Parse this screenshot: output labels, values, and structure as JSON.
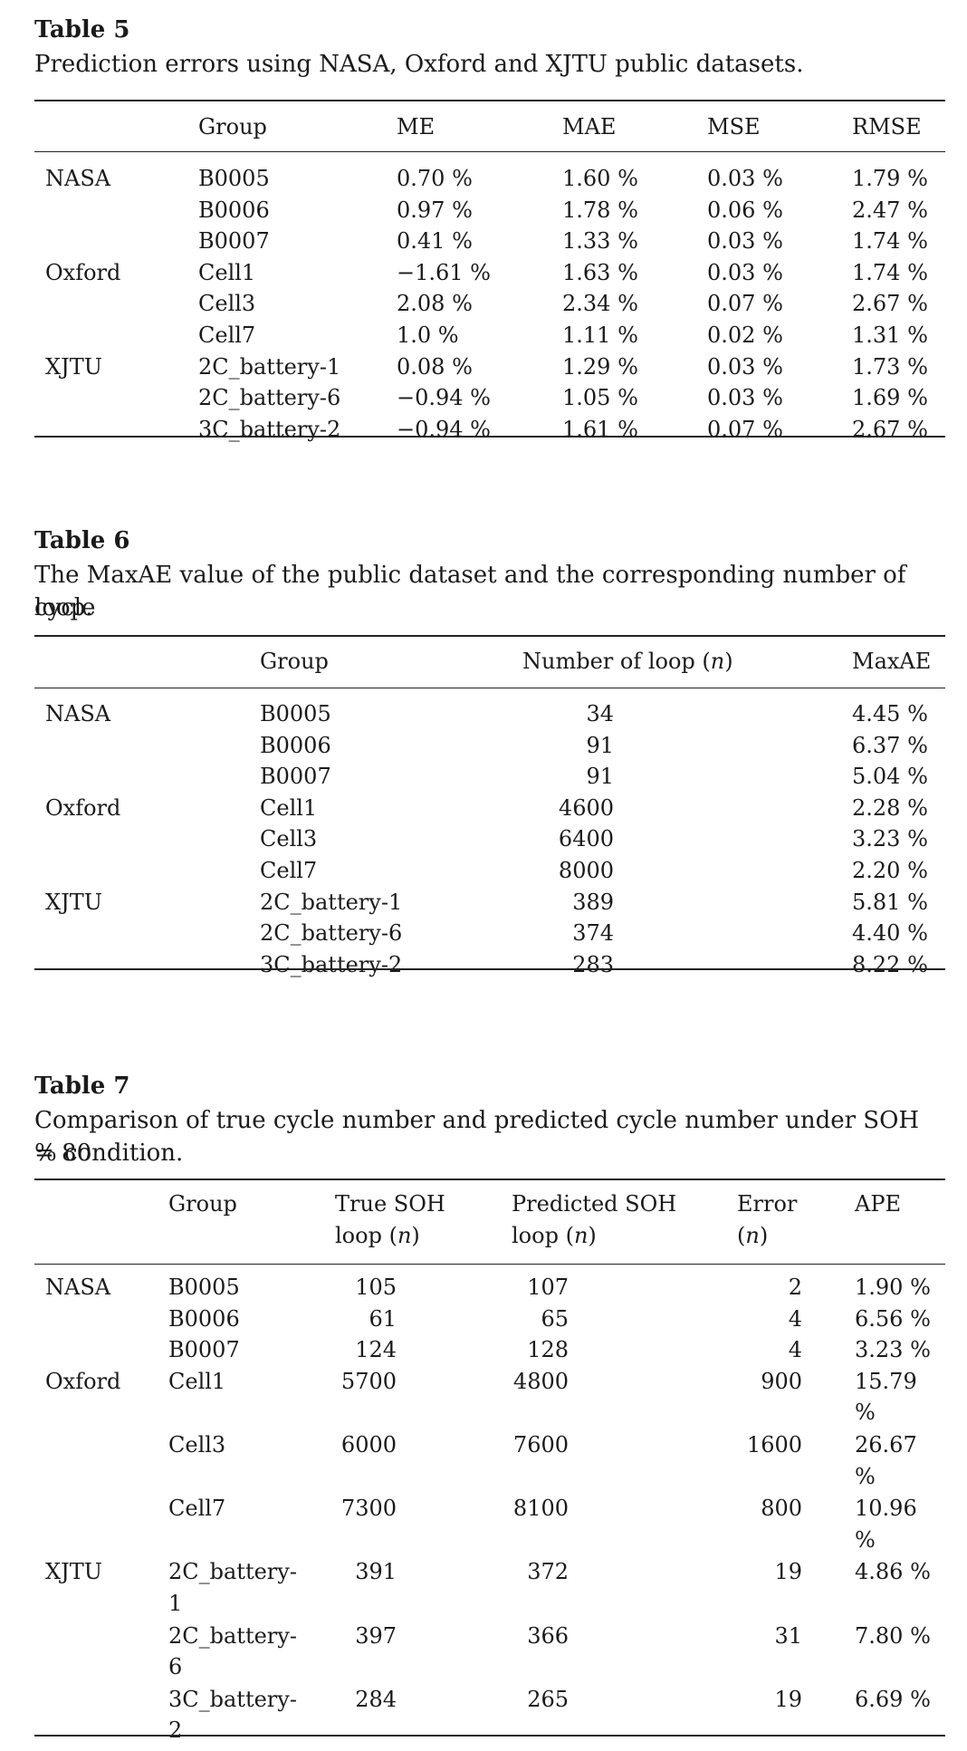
{
  "table5": {
    "label": "Table 5",
    "caption": "Prediction errors using NASA, Oxford and XJTU public datasets.",
    "headers": [
      "Group",
      "ME",
      "MAE",
      "MSE",
      "RMSE"
    ],
    "rows": [
      [
        "NASA",
        "B0005",
        "0.70 %",
        "1.60 %",
        "0.03 %",
        "1.79 %"
      ],
      [
        "",
        "B0006",
        "0.97 %",
        "1.78 %",
        "0.06 %",
        "2.47 %"
      ],
      [
        "",
        "B0007",
        "0.41 %",
        "1.33 %",
        "0.03 %",
        "1.74 %"
      ],
      [
        "Oxford",
        "Cell1",
        "−1.61 %",
        "1.63 %",
        "0.03 %",
        "1.74 %"
      ],
      [
        "",
        "Cell3",
        "2.08 %",
        "2.34 %",
        "0.07 %",
        "2.67 %"
      ],
      [
        "",
        "Cell7",
        "1.0 %",
        "1.11 %",
        "0.02 %",
        "1.31 %"
      ],
      [
        "XJTU",
        "2C_battery-1",
        "0.08 %",
        "1.29 %",
        "0.03 %",
        "1.73 %"
      ],
      [
        "",
        "2C_battery-6",
        "−0.94 %",
        "1.05 %",
        "0.03 %",
        "1.69 %"
      ],
      [
        "",
        "3C_battery-2",
        "−0.94 %",
        "1.61 %",
        "0.07 %",
        "2.67 %"
      ]
    ]
  },
  "table6": {
    "label": "Table 6",
    "caption_line1": "The MaxAE value of the public dataset and the corresponding number of cycle",
    "caption_line2": "loop.",
    "headers": [
      "Group",
      "Number of loop (",
      "n",
      ")",
      "MaxAE"
    ],
    "rows": [
      [
        "NASA",
        "B0005",
        "34",
        "4.45 %"
      ],
      [
        "",
        "B0006",
        "91",
        "6.37 %"
      ],
      [
        "",
        "B0007",
        "91",
        "5.04 %"
      ],
      [
        "Oxford",
        "Cell1",
        "4600",
        "2.28 %"
      ],
      [
        "",
        "Cell3",
        "6400",
        "3.23 %"
      ],
      [
        "",
        "Cell7",
        "8000",
        "2.20 %"
      ],
      [
        "XJTU",
        "2C_battery-1",
        "389",
        "5.81 %"
      ],
      [
        "",
        "2C_battery-6",
        "374",
        "4.40 %"
      ],
      [
        "",
        "3C_battery-2",
        "283",
        "8.22 %"
      ]
    ]
  },
  "table7": {
    "label": "Table 7",
    "caption_line1": "Comparison of true cycle number and predicted cycle number under SOH = 80",
    "caption_line2": "% condition.",
    "headers": {
      "group": "Group",
      "true_l1": "True SOH",
      "true_l2": "loop (",
      "true_n": "n",
      "true_close": ")",
      "pred_l1": "Predicted SOH",
      "pred_l2": "loop (",
      "pred_n": "n",
      "pred_close": ")",
      "err_l1": "Error",
      "err_l2_open": "(",
      "err_n": "n",
      "err_close": ")",
      "ape": "APE"
    },
    "rows": [
      {
        "ds": "NASA",
        "g1": "B0005",
        "g2": "",
        "true": "105",
        "pred": "107",
        "err": "2",
        "ape1": "1.90 %",
        "ape2": ""
      },
      {
        "ds": "",
        "g1": "B0006",
        "g2": "",
        "true": "61",
        "pred": "65",
        "err": "4",
        "ape1": "6.56 %",
        "ape2": ""
      },
      {
        "ds": "",
        "g1": "B0007",
        "g2": "",
        "true": "124",
        "pred": "128",
        "err": "4",
        "ape1": "3.23 %",
        "ape2": ""
      },
      {
        "ds": "Oxford",
        "g1": "Cell1",
        "g2": "",
        "true": "5700",
        "pred": "4800",
        "err": "900",
        "ape1": "15.79",
        "ape2": "%"
      },
      {
        "ds": "",
        "g1": "Cell3",
        "g2": "",
        "true": "6000",
        "pred": "7600",
        "err": "1600",
        "ape1": "26.67",
        "ape2": "%"
      },
      {
        "ds": "",
        "g1": "Cell7",
        "g2": "",
        "true": "7300",
        "pred": "8100",
        "err": "800",
        "ape1": "10.96",
        "ape2": "%"
      },
      {
        "ds": "XJTU",
        "g1": "2C_battery-",
        "g2": "1",
        "true": "391",
        "pred": "372",
        "err": "19",
        "ape1": "4.86 %",
        "ape2": ""
      },
      {
        "ds": "",
        "g1": "2C_battery-",
        "g2": "6",
        "true": "397",
        "pred": "366",
        "err": "31",
        "ape1": "7.80 %",
        "ape2": ""
      },
      {
        "ds": "",
        "g1": "3C_battery-",
        "g2": "2",
        "true": "284",
        "pred": "265",
        "err": "19",
        "ape1": "6.69 %",
        "ape2": ""
      }
    ]
  }
}
